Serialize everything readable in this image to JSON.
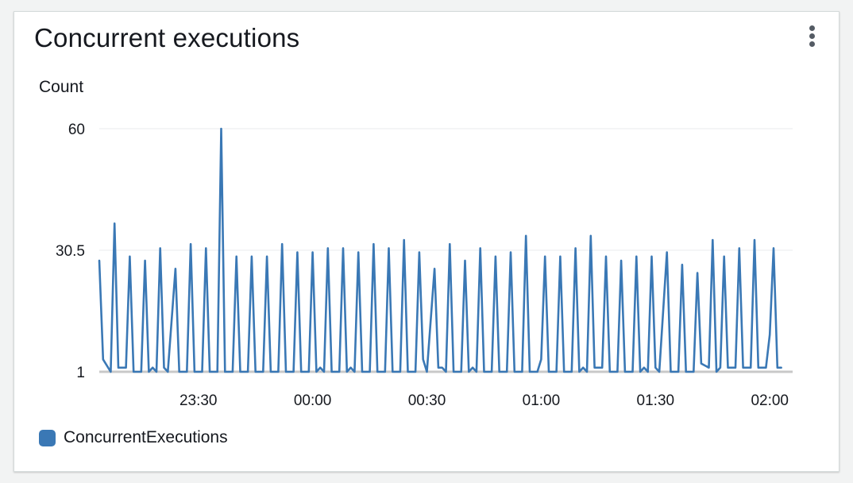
{
  "widget": {
    "title": "Concurrent executions",
    "menu_icon": "vertical-ellipsis-icon"
  },
  "colors": {
    "series": "#3a78b5",
    "grid": "#e9ebed",
    "baseline": "#c8c8c8",
    "text": "#16191f"
  },
  "chart_data": {
    "type": "line",
    "ylabel": "Count",
    "xlabel": "",
    "title": "",
    "ylim": [
      1,
      60
    ],
    "yticks": [
      1,
      30.5,
      60
    ],
    "ytick_labels": [
      "1",
      "30.5",
      "60"
    ],
    "xlim": [
      "23:04",
      "02:06"
    ],
    "xticks": [
      "23:30",
      "00:00",
      "00:30",
      "01:00",
      "01:30",
      "02:00"
    ],
    "grid": true,
    "legend_position": "bottom-left",
    "series": [
      {
        "name": "ConcurrentExecutions",
        "color": "#3a78b5",
        "points": [
          [
            "23:04",
            28
          ],
          [
            "23:05",
            4
          ],
          [
            "23:07",
            1
          ],
          [
            "23:08",
            37
          ],
          [
            "23:09",
            2
          ],
          [
            "23:11",
            2
          ],
          [
            "23:12",
            29
          ],
          [
            "23:13",
            1
          ],
          [
            "23:15",
            1
          ],
          [
            "23:16",
            28
          ],
          [
            "23:17",
            1
          ],
          [
            "23:18",
            2
          ],
          [
            "23:19",
            1
          ],
          [
            "23:20",
            31
          ],
          [
            "23:21",
            2
          ],
          [
            "23:22",
            1
          ],
          [
            "23:24",
            26
          ],
          [
            "23:25",
            1
          ],
          [
            "23:27",
            1
          ],
          [
            "23:28",
            32
          ],
          [
            "23:29",
            1
          ],
          [
            "23:31",
            1
          ],
          [
            "23:32",
            31
          ],
          [
            "23:33",
            1
          ],
          [
            "23:35",
            1
          ],
          [
            "23:36",
            60
          ],
          [
            "23:37",
            1
          ],
          [
            "23:39",
            1
          ],
          [
            "23:40",
            29
          ],
          [
            "23:41",
            1
          ],
          [
            "23:43",
            1
          ],
          [
            "23:44",
            29
          ],
          [
            "23:45",
            1
          ],
          [
            "23:47",
            1
          ],
          [
            "23:48",
            29
          ],
          [
            "23:49",
            1
          ],
          [
            "23:51",
            1
          ],
          [
            "23:52",
            32
          ],
          [
            "23:53",
            1
          ],
          [
            "23:55",
            1
          ],
          [
            "23:56",
            30
          ],
          [
            "23:57",
            1
          ],
          [
            "23:59",
            1
          ],
          [
            "00:00",
            30
          ],
          [
            "00:01",
            1
          ],
          [
            "00:02",
            2
          ],
          [
            "00:03",
            1
          ],
          [
            "00:04",
            31
          ],
          [
            "00:05",
            1
          ],
          [
            "00:07",
            1
          ],
          [
            "00:08",
            31
          ],
          [
            "00:09",
            1
          ],
          [
            "00:10",
            2
          ],
          [
            "00:11",
            1
          ],
          [
            "00:12",
            30
          ],
          [
            "00:13",
            1
          ],
          [
            "00:15",
            1
          ],
          [
            "00:16",
            32
          ],
          [
            "00:17",
            1
          ],
          [
            "00:19",
            1
          ],
          [
            "00:20",
            31
          ],
          [
            "00:21",
            1
          ],
          [
            "00:23",
            1
          ],
          [
            "00:24",
            33
          ],
          [
            "00:25",
            1
          ],
          [
            "00:27",
            1
          ],
          [
            "00:28",
            30
          ],
          [
            "00:29",
            4
          ],
          [
            "00:30",
            1
          ],
          [
            "00:32",
            26
          ],
          [
            "00:33",
            2
          ],
          [
            "00:34",
            2
          ],
          [
            "00:35",
            1
          ],
          [
            "00:36",
            32
          ],
          [
            "00:37",
            1
          ],
          [
            "00:39",
            1
          ],
          [
            "00:40",
            28
          ],
          [
            "00:41",
            1
          ],
          [
            "00:42",
            2
          ],
          [
            "00:43",
            1
          ],
          [
            "00:44",
            31
          ],
          [
            "00:45",
            1
          ],
          [
            "00:47",
            1
          ],
          [
            "00:48",
            29
          ],
          [
            "00:49",
            1
          ],
          [
            "00:51",
            1
          ],
          [
            "00:52",
            30
          ],
          [
            "00:53",
            1
          ],
          [
            "00:55",
            1
          ],
          [
            "00:56",
            34
          ],
          [
            "00:57",
            1
          ],
          [
            "00:59",
            1
          ],
          [
            "01:00",
            4
          ],
          [
            "01:01",
            29
          ],
          [
            "01:02",
            1
          ],
          [
            "01:04",
            1
          ],
          [
            "01:05",
            29
          ],
          [
            "01:06",
            1
          ],
          [
            "01:08",
            1
          ],
          [
            "01:09",
            31
          ],
          [
            "01:10",
            1
          ],
          [
            "01:11",
            2
          ],
          [
            "01:12",
            1
          ],
          [
            "01:13",
            34
          ],
          [
            "01:14",
            2
          ],
          [
            "01:16",
            2
          ],
          [
            "01:17",
            29
          ],
          [
            "01:18",
            1
          ],
          [
            "01:20",
            1
          ],
          [
            "01:21",
            28
          ],
          [
            "01:22",
            1
          ],
          [
            "01:24",
            1
          ],
          [
            "01:25",
            29
          ],
          [
            "01:26",
            1
          ],
          [
            "01:27",
            2
          ],
          [
            "01:28",
            1
          ],
          [
            "01:29",
            29
          ],
          [
            "01:30",
            2
          ],
          [
            "01:31",
            1
          ],
          [
            "01:33",
            30
          ],
          [
            "01:34",
            1
          ],
          [
            "01:36",
            1
          ],
          [
            "01:37",
            27
          ],
          [
            "01:38",
            1
          ],
          [
            "01:40",
            1
          ],
          [
            "01:41",
            25
          ],
          [
            "01:42",
            3
          ],
          [
            "01:44",
            2
          ],
          [
            "01:45",
            33
          ],
          [
            "01:46",
            1
          ],
          [
            "01:47",
            2
          ],
          [
            "01:48",
            29
          ],
          [
            "01:49",
            2
          ],
          [
            "01:51",
            2
          ],
          [
            "01:52",
            31
          ],
          [
            "01:53",
            2
          ],
          [
            "01:55",
            2
          ],
          [
            "01:56",
            33
          ],
          [
            "01:57",
            2
          ],
          [
            "01:59",
            2
          ],
          [
            "02:00",
            10
          ],
          [
            "02:01",
            31
          ],
          [
            "02:02",
            2
          ],
          [
            "02:03",
            2
          ]
        ]
      }
    ]
  }
}
